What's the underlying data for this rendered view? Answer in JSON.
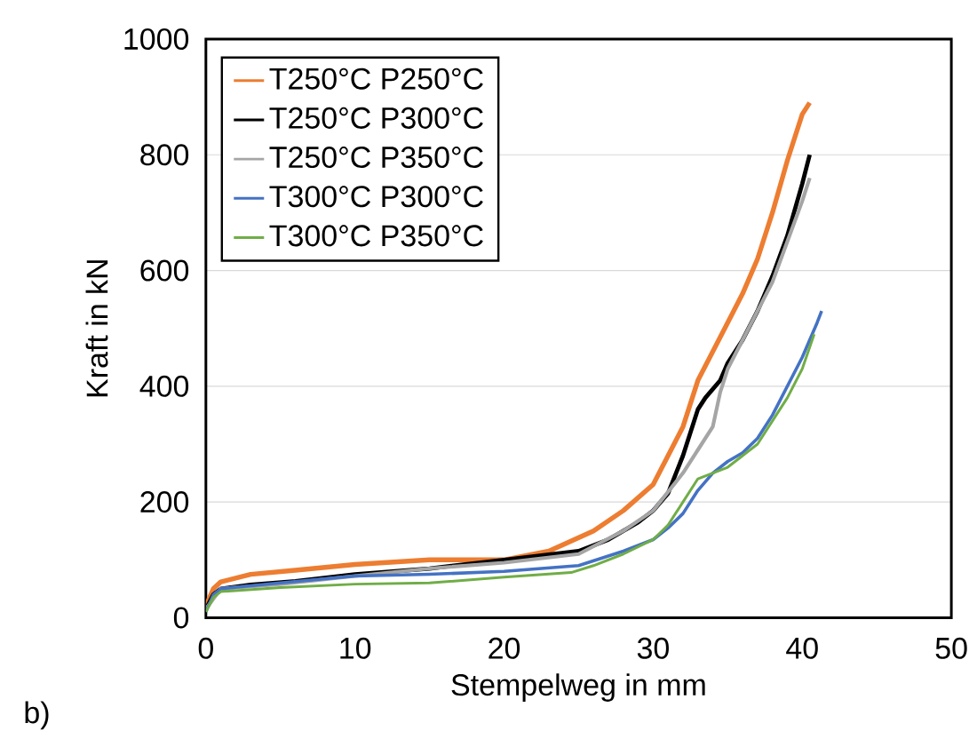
{
  "chart_data": {
    "type": "line",
    "xlabel": "Stempelweg in mm",
    "ylabel": "Kraft in kN",
    "annotations": [
      "b)"
    ],
    "xlim": [
      0,
      50
    ],
    "xticks": [
      0,
      10,
      20,
      30,
      40,
      50
    ],
    "ylim": [
      0,
      1000
    ],
    "yticks": [
      0,
      200,
      400,
      600,
      800,
      1000
    ],
    "grid": "y",
    "legend": "top left",
    "marker": "none",
    "line_style": "solid",
    "series": [
      {
        "name": "T250°C P250°C",
        "color": "#ed7d31",
        "x": [
          0,
          0.5,
          1,
          3,
          6,
          10,
          15,
          20,
          23,
          26,
          28,
          30,
          31,
          32,
          33,
          34,
          35,
          36,
          37,
          38,
          39,
          40,
          40.5
        ],
        "values": [
          20,
          50,
          62,
          75,
          82,
          92,
          100,
          100,
          115,
          150,
          185,
          230,
          280,
          330,
          410,
          460,
          510,
          560,
          620,
          700,
          790,
          870,
          890
        ]
      },
      {
        "name": "T250°C P300°C",
        "color": "#000000",
        "x": [
          0,
          0.5,
          1,
          3,
          6,
          10,
          15,
          20,
          24,
          25,
          27,
          29,
          30,
          31,
          32,
          33,
          33.5,
          34.5,
          35,
          36,
          37,
          38,
          39,
          40,
          40.5
        ],
        "values": [
          15,
          40,
          50,
          57,
          63,
          75,
          85,
          100,
          112,
          115,
          135,
          165,
          185,
          215,
          280,
          360,
          380,
          410,
          440,
          480,
          530,
          590,
          660,
          750,
          800
        ]
      },
      {
        "name": "T250°C P350°C",
        "color": "#a5a5a5",
        "x": [
          0,
          1,
          5,
          10,
          15,
          20,
          25,
          28,
          30,
          32,
          33,
          34,
          34.5,
          35,
          36,
          37,
          38,
          39,
          40,
          40.5
        ],
        "values": [
          15,
          50,
          58,
          72,
          85,
          95,
          110,
          150,
          185,
          250,
          290,
          330,
          390,
          430,
          480,
          530,
          580,
          650,
          720,
          760
        ]
      },
      {
        "name": "T300°C P300°C",
        "color": "#4472c4",
        "x": [
          0,
          0.5,
          1,
          5,
          10,
          15,
          20,
          25,
          28,
          30,
          31,
          32,
          33,
          34,
          35,
          36,
          37,
          38,
          39,
          40,
          41,
          41.3
        ],
        "values": [
          10,
          40,
          50,
          60,
          72,
          75,
          80,
          90,
          115,
          135,
          155,
          180,
          220,
          250,
          270,
          285,
          310,
          350,
          400,
          450,
          510,
          530
        ]
      },
      {
        "name": "T300°C P350°C",
        "color": "#70ad47",
        "x": [
          0,
          0.5,
          1,
          5,
          10,
          15,
          20,
          24.5,
          26,
          28,
          30,
          31,
          32,
          33,
          34,
          35,
          36,
          37,
          38,
          39,
          40,
          40.8
        ],
        "values": [
          10,
          35,
          45,
          52,
          58,
          60,
          70,
          78,
          90,
          110,
          135,
          160,
          200,
          240,
          250,
          260,
          280,
          300,
          340,
          380,
          430,
          490
        ]
      }
    ]
  }
}
